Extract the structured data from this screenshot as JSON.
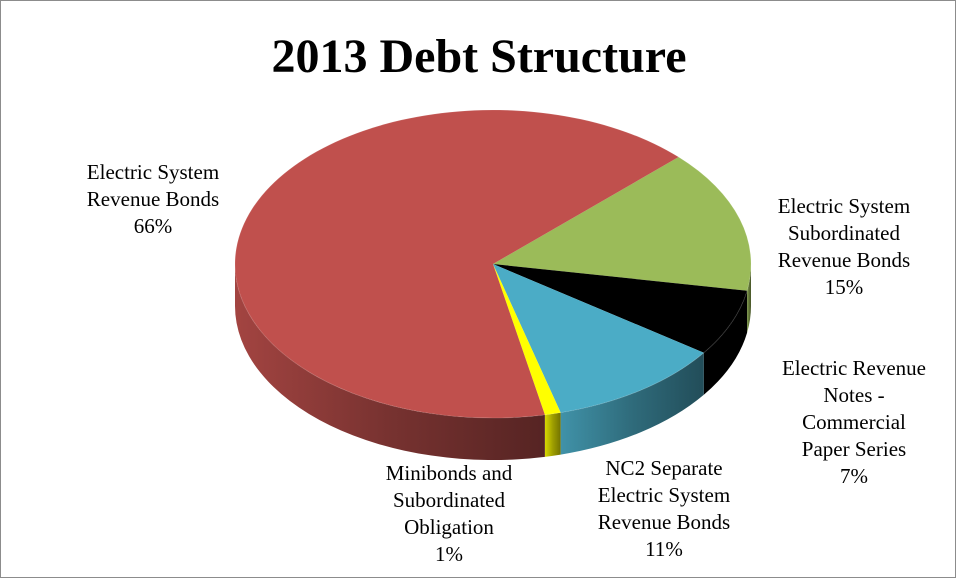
{
  "chart_data": {
    "type": "pie",
    "title": "2013 Debt Structure",
    "slices": [
      {
        "label_lines": [
          "Electric System",
          "Subordinated",
          "Revenue Bonds"
        ],
        "value": 15,
        "pct_label": "15%",
        "color": "#9bbb59"
      },
      {
        "label_lines": [
          "Electric Revenue",
          "Notes -",
          "Commercial",
          "Paper Series"
        ],
        "value": 7,
        "pct_label": "7%",
        "color": "#000000"
      },
      {
        "label_lines": [
          "NC2 Separate",
          "Electric System",
          "Revenue Bonds"
        ],
        "value": 11,
        "pct_label": "11%",
        "color": "#4bacc6"
      },
      {
        "label_lines": [
          "Minibonds and",
          "Subordinated",
          "Obligation"
        ],
        "value": 1,
        "pct_label": "1%",
        "color": "#ffff00"
      },
      {
        "label_lines": [
          "Electric System",
          "Revenue Bonds"
        ],
        "value": 66,
        "pct_label": "66%",
        "color": "#c0504d"
      }
    ]
  }
}
